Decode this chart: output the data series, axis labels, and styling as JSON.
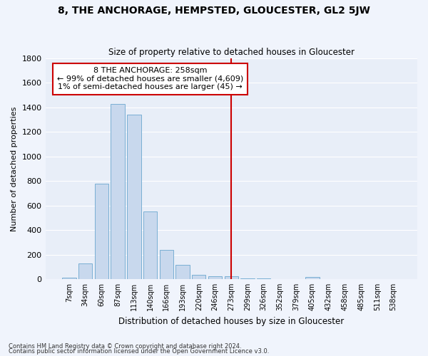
{
  "title": "8, THE ANCHORAGE, HEMPSTED, GLOUCESTER, GL2 5JW",
  "subtitle": "Size of property relative to detached houses in Gloucester",
  "xlabel": "Distribution of detached houses by size in Gloucester",
  "ylabel": "Number of detached properties",
  "bar_color": "#c8d8ed",
  "bar_edge_color": "#7aafd4",
  "background_color": "#e8eef8",
  "figure_color": "#f0f4fc",
  "grid_color": "#ffffff",
  "categories": [
    "7sqm",
    "34sqm",
    "60sqm",
    "87sqm",
    "113sqm",
    "140sqm",
    "166sqm",
    "193sqm",
    "220sqm",
    "246sqm",
    "273sqm",
    "299sqm",
    "326sqm",
    "352sqm",
    "379sqm",
    "405sqm",
    "432sqm",
    "458sqm",
    "485sqm",
    "511sqm",
    "538sqm"
  ],
  "values": [
    10,
    125,
    780,
    1430,
    1340,
    550,
    240,
    115,
    35,
    20,
    20,
    5,
    5,
    0,
    0,
    15,
    0,
    0,
    0,
    0,
    0
  ],
  "vline_index": 10,
  "annotation_text": "8 THE ANCHORAGE: 258sqm\n← 99% of detached houses are smaller (4,609)\n1% of semi-detached houses are larger (45) →",
  "annotation_box_color": "#ffffff",
  "annotation_box_edge_color": "#cc0000",
  "vline_color": "#cc0000",
  "ylim": [
    0,
    1800
  ],
  "yticks": [
    0,
    200,
    400,
    600,
    800,
    1000,
    1200,
    1400,
    1600,
    1800
  ],
  "footnote1": "Contains HM Land Registry data © Crown copyright and database right 2024.",
  "footnote2": "Contains public sector information licensed under the Open Government Licence v3.0."
}
